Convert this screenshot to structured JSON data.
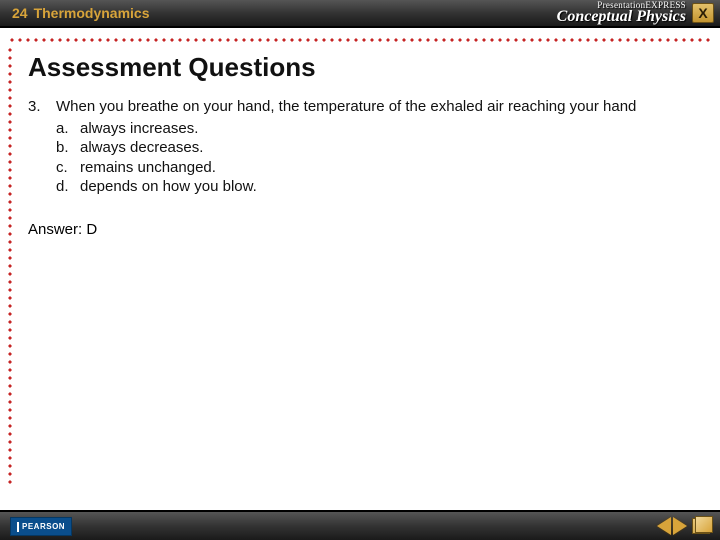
{
  "header": {
    "chapter_number": "24",
    "chapter_title": "Thermodynamics",
    "brand_small": "PresentationEXPRESS",
    "brand_main": "Conceptual Physics",
    "close_label": "X"
  },
  "page": {
    "title": "Assessment Questions",
    "question_number": "3.",
    "question_text": "When you breathe on your hand, the temperature of the exhaled air reaching your hand",
    "options": [
      {
        "letter": "a.",
        "text": "always increases."
      },
      {
        "letter": "b.",
        "text": "always decreases."
      },
      {
        "letter": "c.",
        "text": "remains unchanged."
      },
      {
        "letter": "d.",
        "text": "depends on how you blow."
      }
    ],
    "answer_label": "Answer: D"
  },
  "footer": {
    "publisher": "PEARSON"
  },
  "colors": {
    "accent": "#d8a43a",
    "dot": "#c62424",
    "header_bg": "#333333",
    "pearson_bg": "#0a4e8c"
  }
}
